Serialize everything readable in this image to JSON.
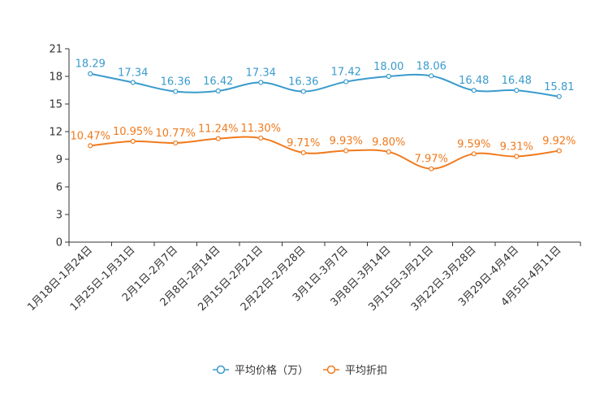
{
  "chart_data": {
    "type": "line",
    "title": "",
    "xlabel": "",
    "ylabel": "",
    "ylim": [
      0,
      21
    ],
    "yticks": [
      0,
      3,
      6,
      9,
      12,
      15,
      18,
      21
    ],
    "ytick_labels": [
      "0",
      "3",
      "6",
      "9",
      "12",
      "15",
      "18",
      "21"
    ],
    "grid": false,
    "legend_position": "bottom-center",
    "categories": [
      "1月18日-1月24日",
      "1月25日-1月31日",
      "2月1日-2月7日",
      "2月8日-2月14日",
      "2月15日-2月21日",
      "2月22日-2月28日",
      "3月1日-3月7日",
      "3月8日-3月14日",
      "3月15日-3月21日",
      "3月22日-3月28日",
      "3月29日-4月4日",
      "4月5日-4月11日"
    ],
    "series": [
      {
        "name": "平均价格（万）",
        "color": "#3a9bcc",
        "values": [
          18.29,
          17.34,
          16.36,
          16.42,
          17.34,
          16.36,
          17.42,
          18.0,
          18.06,
          16.48,
          16.48,
          15.81
        ],
        "labels": [
          "18.29",
          "17.34",
          "16.36",
          "16.42",
          "17.34",
          "16.36",
          "17.42",
          "18.00",
          "18.06",
          "16.48",
          "16.48",
          "15.81"
        ]
      },
      {
        "name": "平均折扣",
        "color": "#f07a1d",
        "values": [
          10.47,
          10.95,
          10.77,
          11.24,
          11.3,
          9.71,
          9.93,
          9.8,
          7.97,
          9.59,
          9.31,
          9.92
        ],
        "labels": [
          "10.47%",
          "10.95%",
          "10.77%",
          "11.24%",
          "11.30%",
          "9.71%",
          "9.93%",
          "9.80%",
          "7.97%",
          "9.59%",
          "9.31%",
          "9.92%"
        ]
      }
    ]
  }
}
